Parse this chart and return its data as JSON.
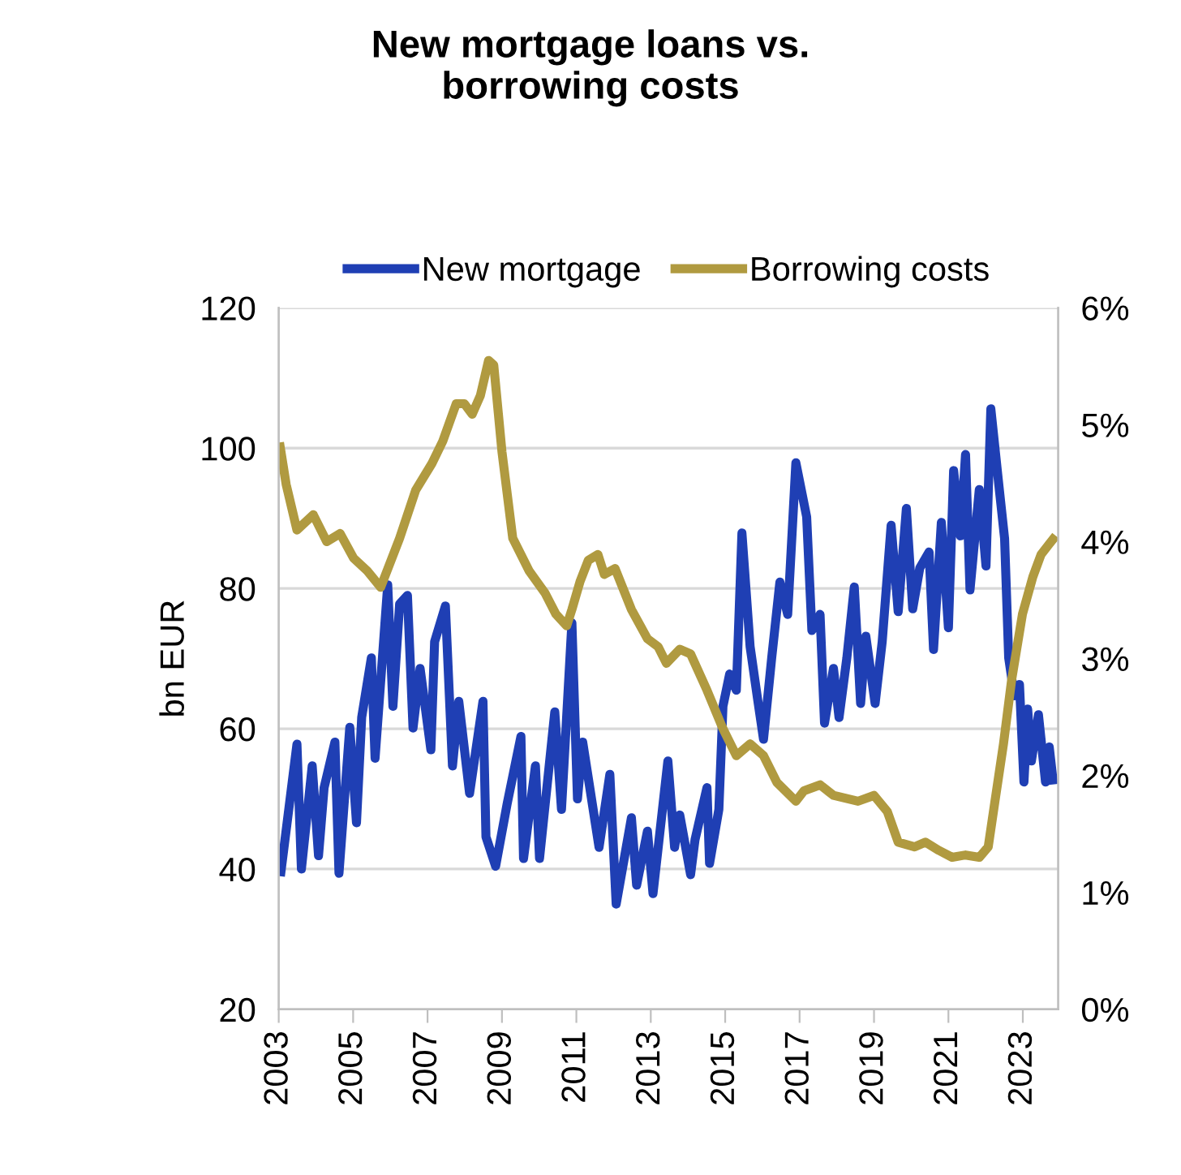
{
  "chart_data": {
    "type": "line",
    "title": "New mortgage loans vs.\nborrowing costs",
    "ylabel": "bn EUR",
    "xlim": [
      2003,
      2023.95
    ],
    "xticks": [
      2003,
      2005,
      2007,
      2009,
      2011,
      2013,
      2015,
      2017,
      2019,
      2021,
      2023
    ],
    "ylim": [
      20,
      120
    ],
    "yticks": [
      20,
      40,
      60,
      80,
      100,
      120
    ],
    "y2lim": [
      0,
      6
    ],
    "y2ticks": [
      {
        "value": 0,
        "label": "0%"
      },
      {
        "value": 1,
        "label": "1%"
      },
      {
        "value": 2,
        "label": "2%"
      },
      {
        "value": 3,
        "label": "3%"
      },
      {
        "value": 4,
        "label": "4%"
      },
      {
        "value": 5,
        "label": "5%"
      },
      {
        "value": 6,
        "label": "6%"
      }
    ],
    "grid": "y",
    "legend": "top",
    "line_style": "solid",
    "series": [
      {
        "name": "New mortgage",
        "color": "#1f3fb4",
        "x": [
          2003.06,
          2003.49,
          2003.61,
          2003.9,
          2004.07,
          2004.22,
          2004.51,
          2004.62,
          2004.91,
          2005.09,
          2005.23,
          2005.49,
          2005.59,
          2005.93,
          2006.07,
          2006.25,
          2006.46,
          2006.61,
          2006.8,
          2007.09,
          2007.19,
          2007.48,
          2007.67,
          2007.84,
          2008.13,
          2008.49,
          2008.57,
          2008.83,
          2009.14,
          2009.51,
          2009.58,
          2009.9,
          2010.01,
          2010.42,
          2010.6,
          2010.88,
          2011.03,
          2011.17,
          2011.61,
          2011.9,
          2012.07,
          2012.48,
          2012.62,
          2012.91,
          2013.06,
          2013.46,
          2013.64,
          2013.78,
          2014.07,
          2014.19,
          2014.51,
          2014.58,
          2014.83,
          2014.94,
          2015.12,
          2015.3,
          2015.45,
          2015.67,
          2015.88,
          2016.03,
          2016.25,
          2016.47,
          2016.68,
          2016.9,
          2017.19,
          2017.33,
          2017.55,
          2017.67,
          2017.91,
          2018.06,
          2018.27,
          2018.47,
          2018.64,
          2018.78,
          2019.03,
          2019.22,
          2019.46,
          2019.65,
          2019.87,
          2020.04,
          2020.23,
          2020.48,
          2020.6,
          2020.81,
          2021.0,
          2021.14,
          2021.32,
          2021.46,
          2021.58,
          2021.83,
          2022.01,
          2022.14,
          2022.33,
          2022.51,
          2022.62,
          2022.77,
          2022.91,
          2023.03,
          2023.13,
          2023.23,
          2023.42,
          2023.61,
          2023.71,
          2023.81
        ],
        "values": [
          39.6,
          57.8,
          40.0,
          54.7,
          41.9,
          51.6,
          58.1,
          39.4,
          60.2,
          46.6,
          61.6,
          70.1,
          55.8,
          80.5,
          63.2,
          77.8,
          79.0,
          60.1,
          68.6,
          57.0,
          72.4,
          77.5,
          54.7,
          63.9,
          50.8,
          63.9,
          44.6,
          40.4,
          49.3,
          58.9,
          41.5,
          54.7,
          41.5,
          62.4,
          48.5,
          75.1,
          50.0,
          58.1,
          43.1,
          53.5,
          35.0,
          47.3,
          37.7,
          45.4,
          36.5,
          55.4,
          43.1,
          47.7,
          39.2,
          44.2,
          51.6,
          40.8,
          48.5,
          63.2,
          67.8,
          65.5,
          87.9,
          71.7,
          63.9,
          58.5,
          70.1,
          80.9,
          76.3,
          97.9,
          90.2,
          74.0,
          76.3,
          60.8,
          68.6,
          61.6,
          70.1,
          80.2,
          63.6,
          73.2,
          63.6,
          72.4,
          89.0,
          76.7,
          91.4,
          77.1,
          82.9,
          85.2,
          71.3,
          89.4,
          74.4,
          96.8,
          87.5,
          99.1,
          79.8,
          94.1,
          83.2,
          105.6,
          96.0,
          87.1,
          70.1,
          64.7,
          66.3,
          52.4,
          62.8,
          55.4,
          62.0,
          52.4,
          57.4,
          52.7
        ]
      },
      {
        "name": "Borrowing costs",
        "color": "#b09a40",
        "axis": "y2",
        "x": [
          2003.04,
          2003.2,
          2003.49,
          2003.93,
          2004.29,
          2004.65,
          2005.01,
          2005.38,
          2005.74,
          2006.25,
          2006.68,
          2007.12,
          2007.41,
          2007.77,
          2007.99,
          2008.2,
          2008.42,
          2008.64,
          2008.78,
          2009.0,
          2009.29,
          2009.73,
          2010.16,
          2010.45,
          2010.74,
          2010.88,
          2011.1,
          2011.32,
          2011.58,
          2011.75,
          2012.04,
          2012.48,
          2012.91,
          2013.2,
          2013.42,
          2013.78,
          2014.07,
          2014.51,
          2014.94,
          2015.3,
          2015.67,
          2016.03,
          2016.39,
          2016.9,
          2017.12,
          2017.55,
          2017.91,
          2018.57,
          2019.0,
          2019.36,
          2019.65,
          2020.09,
          2020.38,
          2020.74,
          2021.1,
          2021.46,
          2021.83,
          2022.07,
          2022.26,
          2022.48,
          2022.7,
          2022.99,
          2023.27,
          2023.49,
          2023.71,
          2023.81
        ],
        "values": [
          4.81,
          4.49,
          4.1,
          4.23,
          4.0,
          4.07,
          3.86,
          3.75,
          3.61,
          4.03,
          4.44,
          4.67,
          4.86,
          5.18,
          5.18,
          5.09,
          5.25,
          5.55,
          5.51,
          4.77,
          4.03,
          3.75,
          3.56,
          3.38,
          3.28,
          3.42,
          3.66,
          3.84,
          3.89,
          3.72,
          3.77,
          3.42,
          3.17,
          3.1,
          2.96,
          3.08,
          3.04,
          2.73,
          2.4,
          2.17,
          2.27,
          2.17,
          1.94,
          1.78,
          1.87,
          1.92,
          1.83,
          1.78,
          1.83,
          1.69,
          1.43,
          1.39,
          1.43,
          1.36,
          1.3,
          1.32,
          1.3,
          1.39,
          1.8,
          2.27,
          2.82,
          3.38,
          3.7,
          3.89,
          3.98,
          4.02
        ]
      }
    ]
  }
}
